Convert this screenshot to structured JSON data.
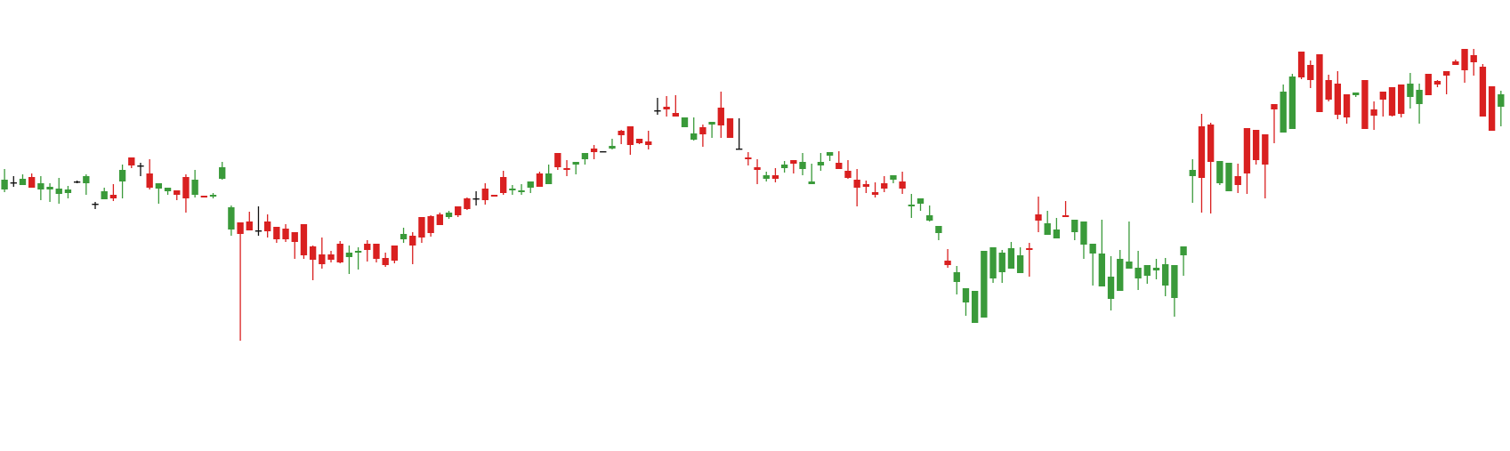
{
  "chart_data": {
    "type": "candlestick",
    "title": "",
    "xlabel": "",
    "ylabel": "",
    "grid": false,
    "legend": "none",
    "ylim": [
      0,
      507
    ],
    "colors": {
      "up": "#3a9a3a",
      "down": "#d92020",
      "doji": "#111111"
    },
    "candles": [
      [
        294,
        305,
        317,
        291
      ],
      [
        302,
        301,
        309,
        297
      ],
      [
        299,
        306,
        311,
        300
      ],
      [
        308,
        296,
        312,
        296
      ],
      [
        294,
        301,
        309,
        282
      ],
      [
        294,
        297,
        301,
        280
      ],
      [
        289,
        295,
        307,
        278
      ],
      [
        290,
        294,
        298,
        284
      ],
      [
        303,
        302,
        304,
        301
      ],
      [
        301,
        309,
        311,
        288
      ],
      [
        278,
        277,
        280,
        272
      ],
      [
        283,
        292,
        296,
        284
      ],
      [
        288,
        284,
        300,
        281
      ],
      [
        303,
        316,
        322,
        284
      ],
      [
        330,
        321,
        322,
        318
      ],
      [
        320,
        321,
        324,
        309
      ],
      [
        312,
        296,
        328,
        294
      ],
      [
        295,
        301,
        301,
        278
      ],
      [
        292,
        296,
        296,
        288
      ],
      [
        293,
        288,
        292,
        282
      ],
      [
        308,
        284,
        311,
        268
      ],
      [
        288,
        305,
        316,
        285
      ],
      [
        287,
        285,
        286,
        285
      ],
      [
        286,
        288,
        290,
        284
      ],
      [
        306,
        319,
        325,
        305
      ],
      [
        249,
        274,
        276,
        242
      ],
      [
        257,
        244,
        257,
        124
      ],
      [
        258,
        248,
        269,
        248
      ],
      [
        248,
        248,
        275,
        242
      ],
      [
        258,
        247,
        266,
        240
      ],
      [
        252,
        238,
        251,
        234
      ],
      [
        250,
        238,
        255,
        235
      ],
      [
        246,
        235,
        246,
        216
      ],
      [
        255,
        220,
        252,
        216
      ],
      [
        230,
        215,
        231,
        192
      ],
      [
        221,
        210,
        240,
        205
      ],
      [
        221,
        215,
        225,
        212
      ],
      [
        233,
        212,
        236,
        211
      ],
      [
        218,
        223,
        231,
        199
      ],
      [
        223,
        225,
        229,
        204
      ],
      [
        233,
        226,
        237,
        213
      ],
      [
        233,
        216,
        232,
        212
      ],
      [
        217,
        209,
        223,
        207
      ],
      [
        231,
        214,
        227,
        211
      ],
      [
        238,
        244,
        251,
        234
      ],
      [
        242,
        231,
        246,
        210
      ],
      [
        263,
        240,
        258,
        234
      ],
      [
        264,
        245,
        265,
        241
      ],
      [
        266,
        254,
        268,
        254
      ],
      [
        263,
        268,
        270,
        261
      ],
      [
        275,
        265,
        271,
        263
      ],
      [
        284,
        272,
        285,
        271
      ],
      [
        284,
        283,
        292,
        276
      ],
      [
        295,
        282,
        301,
        277
      ],
      [
        288,
        286,
        287,
        286
      ],
      [
        308,
        290,
        315,
        288
      ],
      [
        293,
        295,
        299,
        288
      ],
      [
        291,
        293,
        300,
        288
      ],
      [
        296,
        303,
        297,
        290
      ],
      [
        312,
        297,
        314,
        297
      ],
      [
        300,
        312,
        322,
        309
      ],
      [
        335,
        319,
        323,
        316
      ],
      [
        318,
        316,
        327,
        309
      ],
      [
        322,
        325,
        320,
        311
      ],
      [
        328,
        335,
        325,
        322
      ],
      [
        340,
        336,
        344,
        328
      ],
      [
        337,
        337,
        336,
        337
      ],
      [
        340,
        343,
        351,
        339
      ],
      [
        360,
        355,
        361,
        345
      ],
      [
        365,
        344,
        365,
        333
      ],
      [
        351,
        346,
        351,
        345
      ],
      [
        348,
        344,
        360,
        339
      ],
      [
        383,
        383,
        397,
        378
      ],
      [
        387,
        384,
        399,
        376
      ],
      [
        380,
        376,
        400,
        378
      ],
      [
        364,
        375,
        364,
        366
      ],
      [
        350,
        357,
        375,
        349
      ],
      [
        364,
        356,
        367,
        342
      ],
      [
        367,
        370,
        352,
        370
      ],
      [
        386,
        366,
        404,
        352
      ],
      [
        374,
        352,
        357,
        355
      ],
      [
        340,
        340,
        374,
        345
      ],
      [
        330,
        328,
        336,
        321
      ],
      [
        319,
        316,
        328,
        300
      ],
      [
        306,
        310,
        314,
        303
      ],
      [
        310,
        306,
        318,
        302
      ],
      [
        318,
        322,
        326,
        313
      ],
      [
        327,
        323,
        323,
        312
      ],
      [
        317,
        325,
        335,
        310
      ],
      [
        300,
        303,
        323,
        301
      ],
      [
        321,
        325,
        335,
        315
      ],
      [
        332,
        336,
        330,
        326
      ],
      [
        324,
        317,
        337,
        327
      ],
      [
        315,
        307,
        327,
        306
      ],
      [
        305,
        296,
        317,
        275
      ],
      [
        300,
        297,
        304,
        290
      ],
      [
        291,
        288,
        302,
        285
      ],
      [
        301,
        295,
        309,
        291
      ],
      [
        305,
        310,
        302,
        301
      ],
      [
        303,
        295,
        314,
        289
      ],
      [
        275,
        277,
        289,
        262
      ],
      [
        278,
        284,
        280,
        270
      ],
      [
        259,
        265,
        276,
        258
      ],
      [
        245,
        253,
        251,
        237
      ],
      [
        214,
        209,
        227,
        206
      ],
      [
        190,
        201,
        208,
        176
      ],
      [
        167,
        183,
        180,
        152
      ],
      [
        144,
        180,
        170,
        161
      ],
      [
        150,
        225,
        173,
        188
      ],
      [
        194,
        229,
        219,
        189
      ],
      [
        201,
        223,
        226,
        189
      ],
      [
        205,
        228,
        235,
        212
      ],
      [
        200,
        220,
        229,
        200
      ],
      [
        228,
        226,
        234,
        196
      ],
      [
        266,
        259,
        286,
        246
      ],
      [
        243,
        256,
        270,
        248
      ],
      [
        239,
        249,
        262,
        244
      ],
      [
        265,
        263,
        281,
        265
      ],
      [
        246,
        260,
        247,
        237
      ],
      [
        232,
        258,
        246,
        216
      ],
      [
        222,
        233,
        233,
        186
      ],
      [
        185,
        222,
        260,
        212
      ],
      [
        171,
        196,
        219,
        158
      ],
      [
        180,
        216,
        226,
        189
      ],
      [
        205,
        213,
        258,
        211
      ],
      [
        194,
        206,
        225,
        181
      ],
      [
        197,
        209,
        199,
        188
      ],
      [
        203,
        206,
        216,
        193
      ],
      [
        186,
        210,
        217,
        174
      ],
      [
        172,
        209,
        209,
        151
      ],
      [
        220,
        230,
        225,
        197
      ],
      [
        309,
        316,
        328,
        279
      ],
      [
        365,
        307,
        379,
        268
      ],
      [
        367,
        325,
        369,
        267
      ],
      [
        301,
        326,
        299,
        309
      ],
      [
        292,
        324,
        324,
        294
      ],
      [
        309,
        299,
        323,
        290
      ],
      [
        363,
        312,
        326,
        289
      ],
      [
        361,
        327,
        361,
        322
      ],
      [
        356,
        322,
        348,
        284
      ],
      [
        390,
        384,
        388,
        346
      ],
      [
        358,
        404,
        412,
        377
      ],
      [
        362,
        421,
        424,
        393
      ],
      [
        449,
        420,
        422,
        418
      ],
      [
        434,
        417,
        439,
        408
      ],
      [
        446,
        381,
        424,
        381
      ],
      [
        417,
        395,
        423,
        393
      ],
      [
        413,
        378,
        427,
        373
      ],
      [
        401,
        375,
        385,
        368
      ],
      [
        400,
        403,
        398,
        402
      ],
      [
        417,
        362,
        391,
        385
      ],
      [
        384,
        377,
        393,
        361
      ],
      [
        404,
        395,
        395,
        376
      ],
      [
        409,
        377,
        398,
        376
      ],
      [
        412,
        379,
        411,
        375
      ],
      [
        398,
        413,
        425,
        385
      ],
      [
        390,
        406,
        413,
        368
      ],
      [
        424,
        400,
        406,
        401
      ],
      [
        416,
        412,
        417,
        409
      ],
      [
        427,
        422,
        426,
        401
      ],
      [
        438,
        434,
        438,
        440
      ],
      [
        452,
        428,
        447,
        414
      ],
      [
        445,
        437,
        452,
        422
      ],
      [
        432,
        376,
        435,
        383
      ],
      [
        410,
        360,
        376,
        380
      ],
      [
        387,
        401,
        405,
        365
      ]
    ]
  }
}
